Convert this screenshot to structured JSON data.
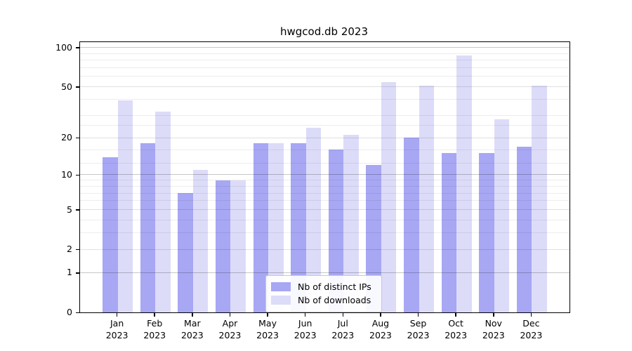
{
  "figure": {
    "background": "#ffffff"
  },
  "chart_data": {
    "type": "bar",
    "title": "hwgcod.db 2023",
    "categories": [
      "Jan",
      "Feb",
      "Mar",
      "Apr",
      "May",
      "Jun",
      "Jul",
      "Aug",
      "Sep",
      "Oct",
      "Nov",
      "Dec"
    ],
    "category_year": "2023",
    "series": [
      {
        "name": "Nb of distinct IPs",
        "color": "#a7a7f4",
        "values": [
          14,
          18,
          7,
          9,
          18,
          18,
          16,
          12,
          20,
          15,
          15,
          17
        ]
      },
      {
        "name": "Nb of downloads",
        "color": "#dcdcf9",
        "values": [
          39,
          32,
          11,
          9,
          18,
          24,
          21,
          54,
          51,
          87,
          28,
          51
        ]
      }
    ],
    "xlabel": "",
    "ylabel": "",
    "y_axis": {
      "scale": "log2(1+v)",
      "ylim": [
        0,
        109
      ],
      "tick_labels": [
        "0",
        "1",
        "2",
        "5",
        "10",
        "20",
        "50",
        "100"
      ],
      "tick_values": [
        0,
        1,
        2,
        5,
        10,
        20,
        50,
        100
      ],
      "minor_gridlines": [
        3,
        4,
        6,
        7,
        8,
        9,
        12.5,
        16,
        25,
        30,
        40,
        60,
        70,
        80,
        90
      ],
      "labeled_gridlines": [
        2,
        5,
        20,
        50
      ],
      "decade_gridlines": [
        1,
        10,
        100
      ]
    },
    "legend": {
      "position": "lower center",
      "entries": [
        "Nb of distinct IPs",
        "Nb of downloads"
      ]
    },
    "grid": true
  }
}
